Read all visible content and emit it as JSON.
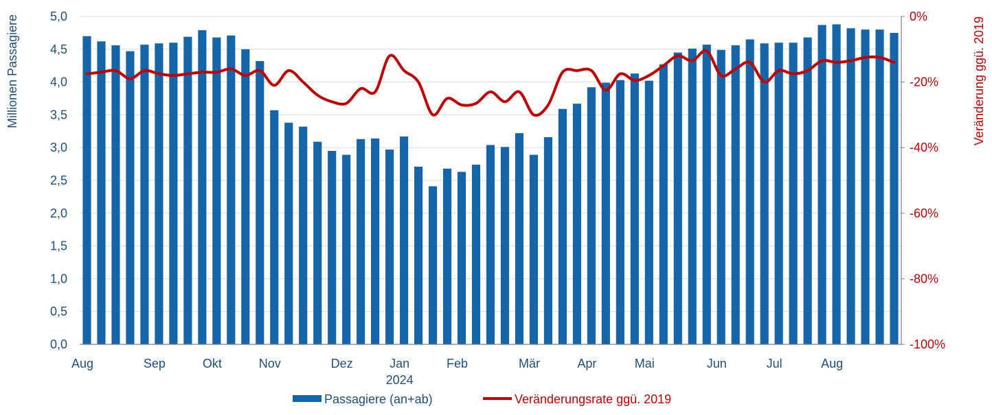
{
  "chart_data": {
    "type": "bar",
    "y_left_label": "Millionen Passagiere",
    "y_right_label": "Veränderung ggü. 2019",
    "y_left_range": [
      0,
      5
    ],
    "y_left_ticks": [
      "0,0",
      "0,5",
      "1,0",
      "1,5",
      "2,0",
      "2,5",
      "3,0",
      "3,5",
      "4,0",
      "4,5",
      "5,0"
    ],
    "y_right_range": [
      -100,
      0
    ],
    "y_right_ticks": [
      "-100%",
      "-80%",
      "-60%",
      "-40%",
      "-20%",
      "0%"
    ],
    "grid": true,
    "legend_position": "bottom",
    "colors": {
      "bars": "#1565a8",
      "line": "#c00000",
      "left_axis_text": "#1f4e79",
      "right_axis_text": "#c00000",
      "grid": "#d9d9d9"
    },
    "x_month_labels": [
      {
        "label": "Aug",
        "week": 0
      },
      {
        "label": "Sep",
        "week": 5
      },
      {
        "label": "Okt",
        "week": 9
      },
      {
        "label": "Nov",
        "week": 13
      },
      {
        "label": "Dez",
        "week": 18
      },
      {
        "label": "Jan",
        "week": 22,
        "year": "2024"
      },
      {
        "label": "Feb",
        "week": 26
      },
      {
        "label": "Mär",
        "week": 31
      },
      {
        "label": "Apr",
        "week": 35
      },
      {
        "label": "Mai",
        "week": 39
      },
      {
        "label": "Jun",
        "week": 44
      },
      {
        "label": "Jul",
        "week": 48
      },
      {
        "label": "Aug",
        "week": 52
      }
    ],
    "series": [
      {
        "name": "Passagiere (an+ab)",
        "type": "bar",
        "axis": "left",
        "values": [
          4.7,
          4.62,
          4.56,
          4.47,
          4.57,
          4.59,
          4.6,
          4.69,
          4.79,
          4.68,
          4.71,
          4.5,
          4.32,
          3.57,
          3.38,
          3.32,
          3.09,
          2.95,
          2.89,
          3.13,
          3.14,
          2.97,
          3.17,
          2.71,
          2.41,
          2.68,
          2.63,
          2.74,
          3.04,
          3.01,
          3.22,
          2.89,
          3.16,
          3.59,
          3.67,
          3.92,
          3.99,
          4.03,
          4.13,
          4.02,
          4.27,
          4.45,
          4.51,
          4.57,
          4.49,
          4.56,
          4.65,
          4.59,
          4.6,
          4.6,
          4.68,
          4.87,
          4.88,
          4.82,
          4.8,
          4.8,
          4.75
        ]
      },
      {
        "name": "Veränderungsrate ggü. 2019",
        "type": "line",
        "axis": "right",
        "values": [
          -17.5,
          -17,
          -16.5,
          -19,
          -16.5,
          -17.5,
          -18,
          -17.5,
          -17,
          -17,
          -16,
          -18,
          -16.5,
          -21,
          -16.5,
          -20,
          -24,
          -26,
          -26.5,
          -22,
          -23,
          -12,
          -16.5,
          -20,
          -30,
          -25,
          -27,
          -26.5,
          -23,
          -26,
          -23,
          -30,
          -27,
          -17,
          -16.5,
          -16.5,
          -22.5,
          -17.5,
          -19.5,
          -18,
          -15,
          -12,
          -13.5,
          -10.5,
          -18,
          -16,
          -14,
          -20,
          -16.5,
          -17.5,
          -16.5,
          -13.5,
          -14,
          -13.5,
          -12.5,
          -12.5,
          -14
        ]
      }
    ]
  }
}
